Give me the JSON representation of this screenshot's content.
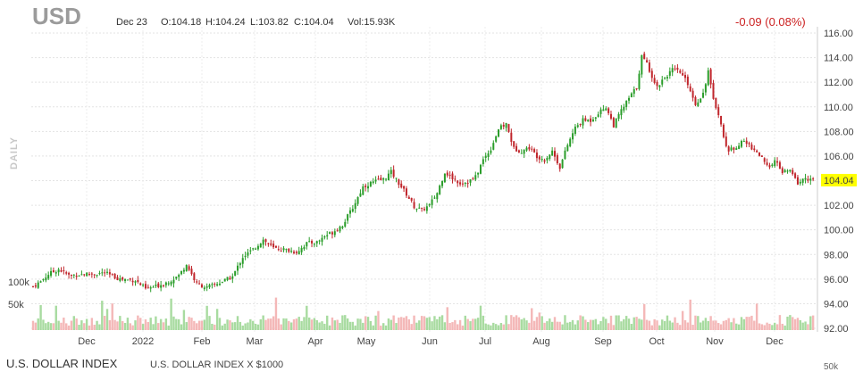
{
  "header": {
    "symbol": "USD",
    "date": "Dec 23",
    "open": "O:104.18",
    "high": "H:104.24",
    "low": "L:103.82",
    "close": "C:104.04",
    "volume": "Vol:15.93K",
    "change": "-0.09 (0.08%)"
  },
  "side_label": "DAILY",
  "footer": {
    "name": "U.S. DOLLAR INDEX",
    "subtitle": "U.S. DOLLAR INDEX X $1000",
    "lower_tick": "50k"
  },
  "colors": {
    "up": "#2a9d2a",
    "down": "#c0262c",
    "vol_up": "#a8dba0",
    "vol_down": "#f4b8b8",
    "last_bg": "#ffff00"
  },
  "chart_data": {
    "type": "candlestick",
    "title": "USD",
    "y_ticks": [
      92,
      94,
      96,
      98,
      100,
      102,
      104,
      106,
      108,
      110,
      112,
      114,
      116
    ],
    "y_tick_labels": [
      "92.00",
      "94.00",
      "96.00",
      "98.00",
      "100.00",
      "102.00",
      "104.00",
      "106.00",
      "108.00",
      "110.00",
      "112.00",
      "114.00",
      "116.00"
    ],
    "ylim": [
      92,
      116.5
    ],
    "last_price": "104.04",
    "x_labels": [
      "Dec",
      "2022",
      "Feb",
      "Mar",
      "Apr",
      "May",
      "Jun",
      "Jul",
      "Aug",
      "Sep",
      "Oct",
      "Nov",
      "Dec"
    ],
    "volume_ticks": [
      "100k",
      "50k"
    ],
    "grid": true,
    "close_path": [
      {
        "t": 0,
        "v": 95.4
      },
      {
        "t": 3,
        "v": 95.8
      },
      {
        "t": 6,
        "v": 96.4
      },
      {
        "t": 10,
        "v": 96.8
      },
      {
        "t": 14,
        "v": 96.3
      },
      {
        "t": 20,
        "v": 96.4
      },
      {
        "t": 28,
        "v": 96.5
      },
      {
        "t": 34,
        "v": 96.0
      },
      {
        "t": 40,
        "v": 95.9
      },
      {
        "t": 44,
        "v": 95.2
      },
      {
        "t": 48,
        "v": 95.4
      },
      {
        "t": 53,
        "v": 95.8
      },
      {
        "t": 57,
        "v": 96.3
      },
      {
        "t": 60,
        "v": 97.2
      },
      {
        "t": 64,
        "v": 95.6
      },
      {
        "t": 68,
        "v": 95.3
      },
      {
        "t": 74,
        "v": 95.8
      },
      {
        "t": 78,
        "v": 96.2
      },
      {
        "t": 82,
        "v": 97.8
      },
      {
        "t": 86,
        "v": 98.4
      },
      {
        "t": 90,
        "v": 99.2
      },
      {
        "t": 94,
        "v": 98.5
      },
      {
        "t": 98,
        "v": 98.4
      },
      {
        "t": 103,
        "v": 98.2
      },
      {
        "t": 107,
        "v": 98.9
      },
      {
        "t": 111,
        "v": 99.0
      },
      {
        "t": 114,
        "v": 99.5
      },
      {
        "t": 117,
        "v": 99.8
      },
      {
        "t": 121,
        "v": 100.4
      },
      {
        "t": 125,
        "v": 101.8
      },
      {
        "t": 129,
        "v": 103.5
      },
      {
        "t": 133,
        "v": 103.9
      },
      {
        "t": 137,
        "v": 104.1
      },
      {
        "t": 140,
        "v": 104.7
      },
      {
        "t": 143,
        "v": 103.8
      },
      {
        "t": 146,
        "v": 102.9
      },
      {
        "t": 149,
        "v": 101.9
      },
      {
        "t": 152,
        "v": 101.6
      },
      {
        "t": 155,
        "v": 102.0
      },
      {
        "t": 158,
        "v": 103.0
      },
      {
        "t": 161,
        "v": 104.7
      },
      {
        "t": 164,
        "v": 104.2
      },
      {
        "t": 167,
        "v": 103.8
      },
      {
        "t": 170,
        "v": 103.9
      },
      {
        "t": 173,
        "v": 104.3
      },
      {
        "t": 176,
        "v": 105.7
      },
      {
        "t": 179,
        "v": 106.6
      },
      {
        "t": 182,
        "v": 108.2
      },
      {
        "t": 185,
        "v": 108.6
      },
      {
        "t": 188,
        "v": 106.6
      },
      {
        "t": 191,
        "v": 106.4
      },
      {
        "t": 194,
        "v": 106.7
      },
      {
        "t": 197,
        "v": 106.0
      },
      {
        "t": 200,
        "v": 105.7
      },
      {
        "t": 203,
        "v": 106.4
      },
      {
        "t": 206,
        "v": 105.1
      },
      {
        "t": 209,
        "v": 106.9
      },
      {
        "t": 212,
        "v": 108.3
      },
      {
        "t": 215,
        "v": 108.9
      },
      {
        "t": 218,
        "v": 108.9
      },
      {
        "t": 221,
        "v": 109.5
      },
      {
        "t": 224,
        "v": 110.0
      },
      {
        "t": 227,
        "v": 108.5
      },
      {
        "t": 230,
        "v": 109.7
      },
      {
        "t": 233,
        "v": 110.7
      },
      {
        "t": 236,
        "v": 111.6
      },
      {
        "t": 238,
        "v": 114.1
      },
      {
        "t": 240,
        "v": 113.5
      },
      {
        "t": 242,
        "v": 112.5
      },
      {
        "t": 244,
        "v": 111.6
      },
      {
        "t": 246,
        "v": 112.2
      },
      {
        "t": 248,
        "v": 112.6
      },
      {
        "t": 250,
        "v": 113.0
      },
      {
        "t": 253,
        "v": 112.8
      },
      {
        "t": 256,
        "v": 111.9
      },
      {
        "t": 259,
        "v": 110.2
      },
      {
        "t": 262,
        "v": 111.1
      },
      {
        "t": 264,
        "v": 112.9
      },
      {
        "t": 266,
        "v": 110.5
      },
      {
        "t": 268,
        "v": 109.5
      },
      {
        "t": 270,
        "v": 107.5
      },
      {
        "t": 272,
        "v": 106.4
      },
      {
        "t": 275,
        "v": 106.8
      },
      {
        "t": 278,
        "v": 107.2
      },
      {
        "t": 281,
        "v": 106.7
      },
      {
        "t": 284,
        "v": 106.1
      },
      {
        "t": 287,
        "v": 105.1
      },
      {
        "t": 290,
        "v": 105.6
      },
      {
        "t": 293,
        "v": 104.7
      },
      {
        "t": 296,
        "v": 104.8
      },
      {
        "t": 299,
        "v": 103.8
      },
      {
        "t": 302,
        "v": 104.2
      },
      {
        "t": 305,
        "v": 104.04
      }
    ]
  }
}
